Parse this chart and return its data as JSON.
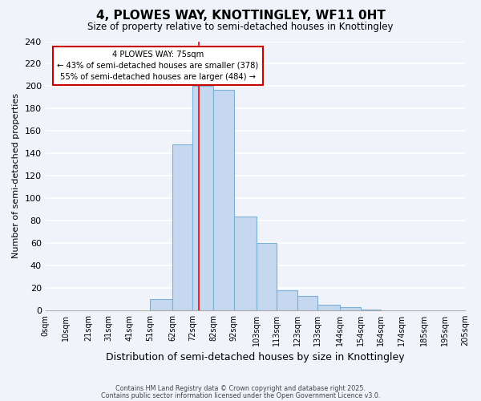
{
  "title": "4, PLOWES WAY, KNOTTINGLEY, WF11 0HT",
  "subtitle": "Size of property relative to semi-detached houses in Knottingley",
  "xlabel": "Distribution of semi-detached houses by size in Knottingley",
  "ylabel": "Number of semi-detached properties",
  "bin_edges": [
    0,
    10,
    21,
    31,
    41,
    51,
    62,
    72,
    82,
    92,
    103,
    113,
    123,
    133,
    144,
    154,
    164,
    174,
    185,
    195,
    205
  ],
  "bin_labels": [
    "0sqm",
    "10sqm",
    "21sqm",
    "31sqm",
    "41sqm",
    "51sqm",
    "62sqm",
    "72sqm",
    "82sqm",
    "92sqm",
    "103sqm",
    "113sqm",
    "123sqm",
    "133sqm",
    "144sqm",
    "154sqm",
    "164sqm",
    "174sqm",
    "185sqm",
    "195sqm",
    "205sqm"
  ],
  "counts": [
    0,
    0,
    0,
    0,
    0,
    10,
    148,
    200,
    197,
    84,
    60,
    18,
    13,
    5,
    3,
    1,
    0,
    0,
    0,
    0
  ],
  "bar_color": "#c5d8f0",
  "bar_edge_color": "#7bafd4",
  "property_line_x": 75,
  "property_line_color": "red",
  "annotation_title": "4 PLOWES WAY: 75sqm",
  "annotation_line1": "← 43% of semi-detached houses are smaller (378)",
  "annotation_line2": "55% of semi-detached houses are larger (484) →",
  "annotation_box_color": "#ffffff",
  "annotation_box_edge": "#cc0000",
  "ylim": [
    0,
    240
  ],
  "yticks": [
    0,
    20,
    40,
    60,
    80,
    100,
    120,
    140,
    160,
    180,
    200,
    220,
    240
  ],
  "background_color": "#f0f4fa",
  "grid_color": "#ffffff",
  "footer1": "Contains HM Land Registry data © Crown copyright and database right 2025.",
  "footer2": "Contains public sector information licensed under the Open Government Licence v3.0."
}
